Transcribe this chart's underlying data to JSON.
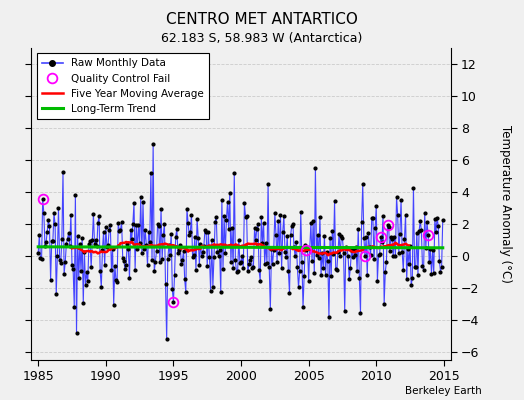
{
  "title": "CENTRO MET ANTARTICO",
  "subtitle": "62.183 S, 58.983 W (Antarctica)",
  "ylabel": "Temperature Anomaly (°C)",
  "credit": "Berkeley Earth",
  "xlim": [
    1984.5,
    2015.5
  ],
  "ylim": [
    -6.5,
    13.0
  ],
  "yticks": [
    -6,
    -4,
    -2,
    0,
    2,
    4,
    6,
    8,
    10,
    12
  ],
  "xticks": [
    1985,
    1990,
    1995,
    2000,
    2005,
    2010,
    2015
  ],
  "raw_color": "#4444ff",
  "ma_color": "#ff0000",
  "trend_color": "#00bb00",
  "qc_color": "#ff00ff",
  "bg_color": "#f0f0f0",
  "grid_color": "#cccccc"
}
